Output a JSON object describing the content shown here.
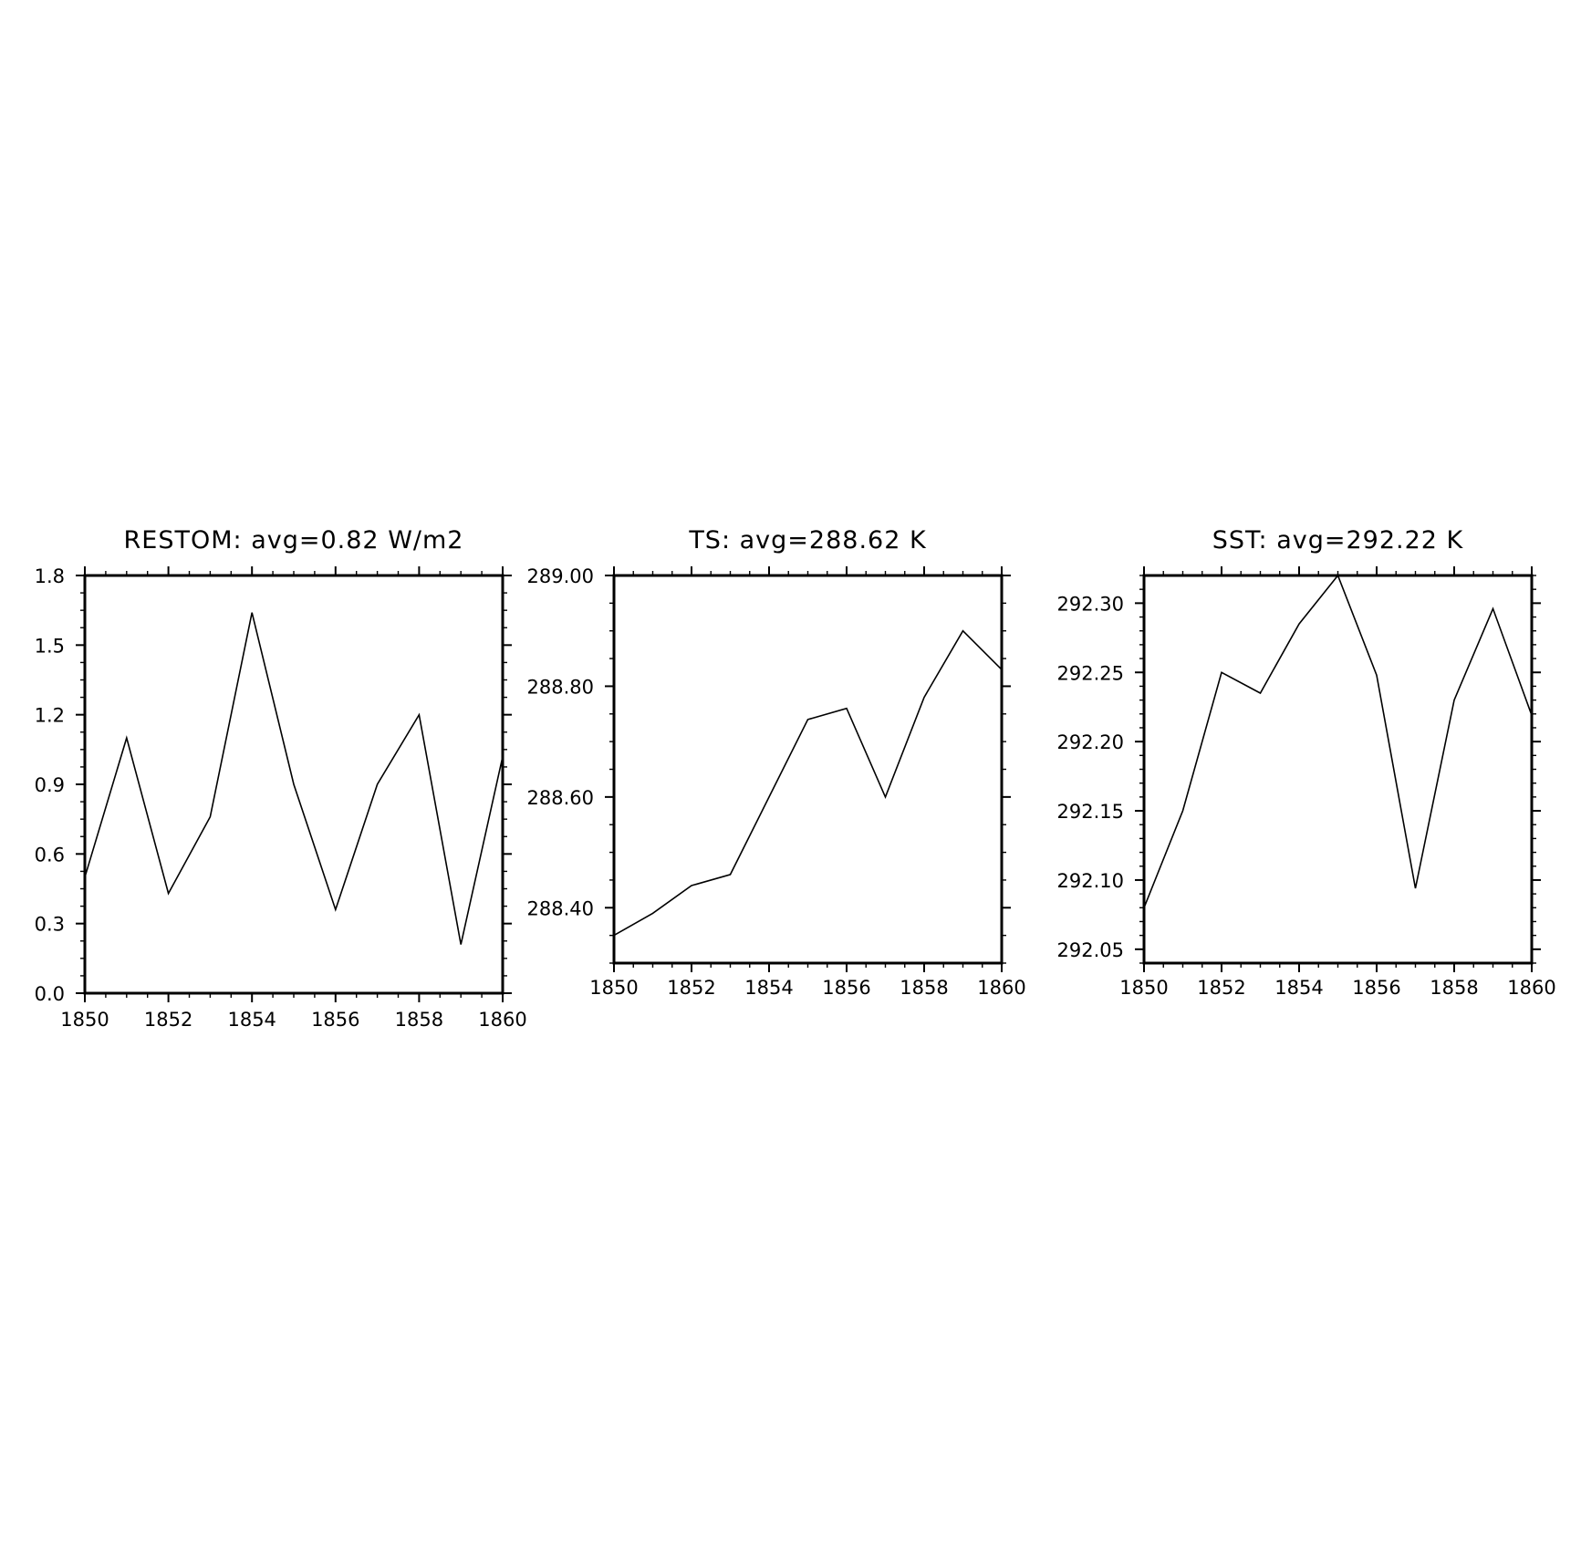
{
  "chart_data": [
    {
      "type": "line",
      "title": "RESTOM: avg=0.82 W/m2",
      "xlabel": "",
      "ylabel": "",
      "xlim": [
        1850,
        1860
      ],
      "ylim": [
        0.0,
        1.8
      ],
      "xticks": [
        1850,
        1852,
        1854,
        1856,
        1858,
        1860
      ],
      "xtick_labels": [
        "1850",
        "1852",
        "1854",
        "1856",
        "1858",
        "1860"
      ],
      "yticks": [
        0.0,
        0.3,
        0.6,
        0.9,
        1.2,
        1.5,
        1.8
      ],
      "ytick_labels": [
        "0.0",
        "0.3",
        "0.6",
        "0.9",
        "1.2",
        "1.5",
        "1.8"
      ],
      "x_minor_step": 0.5,
      "y_minor_step": 0.075,
      "grid": false,
      "series": [
        {
          "x": [
            1850,
            1851,
            1852,
            1853,
            1854,
            1855,
            1856,
            1857,
            1858,
            1859,
            1860
          ],
          "values": [
            0.5,
            1.1,
            0.43,
            0.76,
            1.64,
            0.9,
            0.36,
            0.9,
            1.2,
            0.21,
            1.02
          ]
        }
      ]
    },
    {
      "type": "line",
      "title": "TS: avg=288.62 K",
      "xlabel": "",
      "ylabel": "",
      "xlim": [
        1850,
        1860
      ],
      "ylim": [
        288.3,
        289.0
      ],
      "xticks": [
        1850,
        1852,
        1854,
        1856,
        1858,
        1860
      ],
      "xtick_labels": [
        "1850",
        "1852",
        "1854",
        "1856",
        "1858",
        "1860"
      ],
      "yticks": [
        288.4,
        288.6,
        288.8,
        289.0
      ],
      "ytick_labels": [
        "288.40",
        "288.60",
        "288.80",
        "289.00"
      ],
      "x_minor_step": 0.5,
      "y_minor_step": 0.05,
      "grid": false,
      "series": [
        {
          "x": [
            1850,
            1851,
            1852,
            1853,
            1854,
            1855,
            1856,
            1857,
            1858,
            1859,
            1860
          ],
          "values": [
            288.35,
            288.39,
            288.44,
            288.46,
            288.6,
            288.74,
            288.76,
            288.6,
            288.78,
            288.9,
            288.83
          ]
        }
      ]
    },
    {
      "type": "line",
      "title": "SST: avg=292.22 K",
      "xlabel": "",
      "ylabel": "",
      "xlim": [
        1850,
        1860
      ],
      "ylim": [
        292.04,
        292.32
      ],
      "xticks": [
        1850,
        1852,
        1854,
        1856,
        1858,
        1860
      ],
      "xtick_labels": [
        "1850",
        "1852",
        "1854",
        "1856",
        "1858",
        "1860"
      ],
      "yticks": [
        292.05,
        292.1,
        292.15,
        292.2,
        292.25,
        292.3
      ],
      "ytick_labels": [
        "292.05",
        "292.10",
        "292.15",
        "292.20",
        "292.25",
        "292.30"
      ],
      "x_minor_step": 0.5,
      "y_minor_step": 0.01,
      "grid": false,
      "series": [
        {
          "x": [
            1850,
            1851,
            1852,
            1853,
            1854,
            1855,
            1856,
            1857,
            1858,
            1859,
            1860
          ],
          "values": [
            292.08,
            292.15,
            292.25,
            292.235,
            292.285,
            292.32,
            292.248,
            292.094,
            292.23,
            292.296,
            292.219
          ]
        }
      ]
    }
  ]
}
